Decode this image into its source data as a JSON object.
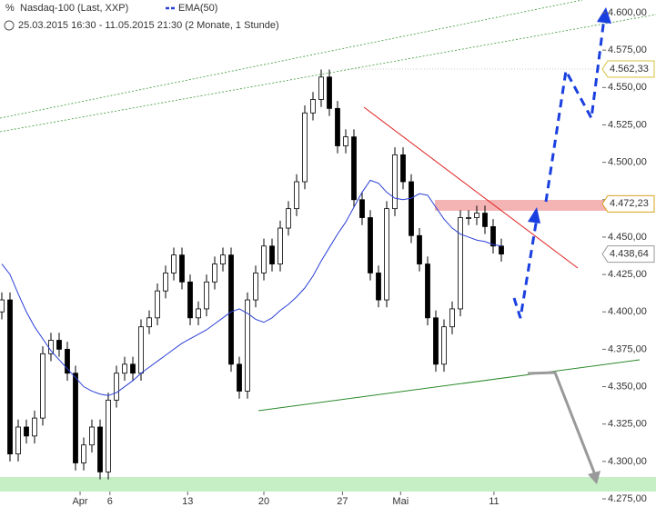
{
  "chart_data": {
    "type": "candlestick",
    "title": "Nasdaq-100 (Last, XXP)",
    "subtitle": "25.03.2015 16:30 - 11.05.2015 21:30 (2 Monate, 1 Stunde)",
    "open": [
      4400,
      4408,
      4305,
      4323,
      4317,
      4329,
      4372,
      4381,
      4375,
      4359,
      4299,
      4311,
      4323,
      4293,
      4341,
      4359,
      4365,
      4359,
      4390,
      4396,
      4414,
      4426,
      4438,
      4420,
      4396,
      4402,
      4420,
      4432,
      4438,
      4365,
      4347,
      4408,
      4426,
      4444,
      4432,
      4456,
      4469,
      4487,
      4533,
      4542,
      4557,
      4536,
      4511,
      4517,
      4475,
      4463,
      4426,
      4408,
      4469,
      4505,
      4487,
      4451,
      4432,
      4396,
      4365,
      4390,
      4402,
      4463,
      4463,
      4466,
      4457,
      4444
    ],
    "high": [
      4413,
      4413,
      4328,
      4328,
      4334,
      4377,
      4386,
      4386,
      4380,
      4364,
      4316,
      4328,
      4328,
      4346,
      4364,
      4370,
      4370,
      4395,
      4401,
      4419,
      4431,
      4443,
      4443,
      4425,
      4407,
      4425,
      4437,
      4443,
      4443,
      4370,
      4413,
      4431,
      4449,
      4449,
      4461,
      4474,
      4492,
      4538,
      4547,
      4562,
      4562,
      4541,
      4522,
      4522,
      4480,
      4468,
      4431,
      4474,
      4510,
      4510,
      4492,
      4456,
      4437,
      4401,
      4395,
      4407,
      4468,
      4468,
      4471,
      4471,
      4462,
      4449
    ],
    "low": [
      4395,
      4300,
      4300,
      4312,
      4312,
      4324,
      4367,
      4370,
      4354,
      4294,
      4294,
      4306,
      4288,
      4288,
      4336,
      4354,
      4354,
      4354,
      4385,
      4391,
      4409,
      4421,
      4415,
      4391,
      4391,
      4397,
      4415,
      4427,
      4360,
      4342,
      4342,
      4403,
      4421,
      4427,
      4427,
      4451,
      4464,
      4482,
      4528,
      4537,
      4531,
      4506,
      4506,
      4470,
      4458,
      4421,
      4403,
      4403,
      4464,
      4482,
      4446,
      4427,
      4391,
      4360,
      4360,
      4385,
      4397,
      4458,
      4458,
      4452,
      4439,
      4433.64
    ],
    "close": [
      4408,
      4305,
      4323,
      4317,
      4329,
      4372,
      4381,
      4375,
      4359,
      4299,
      4311,
      4323,
      4293,
      4341,
      4359,
      4365,
      4359,
      4390,
      4396,
      4414,
      4426,
      4438,
      4420,
      4396,
      4402,
      4420,
      4432,
      4438,
      4365,
      4347,
      4408,
      4426,
      4444,
      4432,
      4456,
      4469,
      4487,
      4533,
      4542,
      4557,
      4536,
      4511,
      4517,
      4475,
      4463,
      4426,
      4408,
      4469,
      4505,
      4487,
      4451,
      4432,
      4396,
      4365,
      4390,
      4402,
      4463,
      4463,
      4466,
      4457,
      4444,
      4438.64
    ],
    "series": [
      {
        "name": "EMA(50)",
        "color": "#2a3fd6",
        "values": [
          4432,
          4425,
          4412,
          4400,
          4390,
          4382,
          4374,
          4368,
          4362,
          4356,
          4350,
          4347,
          4345,
          4344,
          4346,
          4350,
          4354,
          4359,
          4363,
          4367,
          4371,
          4375,
          4379,
          4382,
          4385,
          4388,
          4392,
          4396,
          4400,
          4402,
          4399,
          4395,
          4393,
          4396,
          4401,
          4405,
          4410,
          4416,
          4424,
          4434,
          4443,
          4452,
          4460,
          4470,
          4480,
          4488,
          4486,
          4480,
          4476,
          4475,
          4476,
          4479,
          4478,
          4470,
          4462,
          4456,
          4452,
          4450,
          4448,
          4447,
          4445,
          4444
        ]
      }
    ],
    "xticks": [
      {
        "value": 9.56,
        "label": "Apr"
      },
      {
        "value": 13.2,
        "label": "6"
      },
      {
        "value": 22.7,
        "label": "13"
      },
      {
        "value": 32,
        "label": "20"
      },
      {
        "value": 41.6,
        "label": "27"
      },
      {
        "value": 48.7,
        "label": "Mai"
      },
      {
        "value": 60.1,
        "label": "11"
      }
    ],
    "ylim": [
      4275,
      4600
    ],
    "yticks": [
      {
        "value": 4275,
        "label": "4.275,00"
      },
      {
        "value": 4300,
        "label": "4.300,00"
      },
      {
        "value": 4325,
        "label": "4.325,00"
      },
      {
        "value": 4350,
        "label": "4.350,00"
      },
      {
        "value": 4375,
        "label": "4.375,00"
      },
      {
        "value": 4400,
        "label": "4.400,00"
      },
      {
        "value": 4425,
        "label": "4.425,00"
      },
      {
        "value": 4450,
        "label": "4.450,00"
      },
      {
        "value": 4475,
        "label": "4.475,00"
      },
      {
        "value": 4500,
        "label": "4.500,00"
      },
      {
        "value": 4525,
        "label": "4.525,00"
      },
      {
        "value": 4550,
        "label": "4.550,00"
      },
      {
        "value": 4575,
        "label": "4.575,00"
      },
      {
        "value": 4600,
        "label": "4.600,00"
      }
    ],
    "price_markers": [
      {
        "value": 4562.33,
        "label": "4.562,33",
        "color": "#d8c040"
      },
      {
        "value": 4472.23,
        "label": "4.472,23",
        "color": "#d8a020"
      },
      {
        "value": 4438.64,
        "label": "4.438,64",
        "color": "#999999"
      }
    ]
  }
}
